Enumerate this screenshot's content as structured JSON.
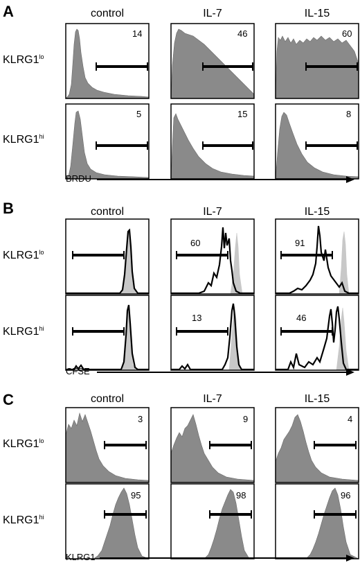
{
  "sections": [
    {
      "label": "A",
      "columns": [
        "control",
        "IL-7",
        "IL-15"
      ],
      "rows": [
        {
          "name": "KLRG1",
          "sup": "lo"
        },
        {
          "name": "KLRG1",
          "sup": "hi"
        }
      ],
      "axis_label": "BRDU",
      "panels": [
        [
          "14",
          "46",
          "60"
        ],
        [
          "5",
          "15",
          "8"
        ]
      ]
    },
    {
      "label": "B",
      "columns": [
        "control",
        "IL-7",
        "IL-15"
      ],
      "rows": [
        {
          "name": "KLRG1",
          "sup": "lo"
        },
        {
          "name": "KLRG1",
          "sup": "hi"
        }
      ],
      "axis_label": "CFSE",
      "panels": [
        [
          "",
          "60",
          "91"
        ],
        [
          "",
          "13",
          "46"
        ]
      ]
    },
    {
      "label": "C",
      "columns": [
        "control",
        "IL-7",
        "IL-15"
      ],
      "rows": [
        {
          "name": "KLRG1",
          "sup": "lo"
        },
        {
          "name": "KLRG1",
          "sup": "hi"
        }
      ],
      "axis_label": "KLRG1",
      "panels": [
        [
          "3",
          "9",
          "4"
        ],
        [
          "95",
          "98",
          "96"
        ]
      ]
    }
  ],
  "colors": {
    "histogram_fill": "#8a8a8a",
    "control_fill": "#c8c8c8",
    "outline": "#000000"
  }
}
